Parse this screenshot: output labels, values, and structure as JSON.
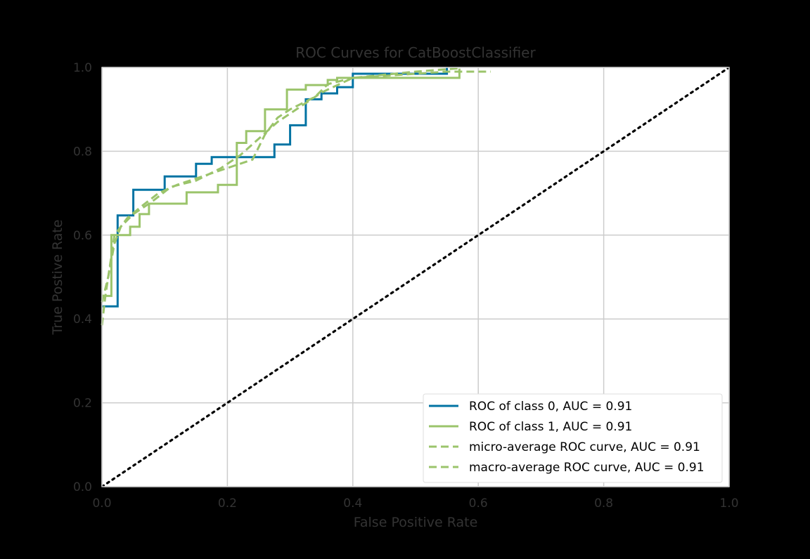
{
  "chart_data": {
    "type": "line",
    "title": "ROC Curves for CatBoostClassifier",
    "xlabel": "False Positive Rate",
    "ylabel": "True Postive Rate",
    "xlim": [
      0,
      1
    ],
    "ylim": [
      0,
      1
    ],
    "xticks": [
      "0.0",
      "0.2",
      "0.4",
      "0.6",
      "0.8",
      "1.0"
    ],
    "yticks": [
      "0.0",
      "0.2",
      "0.4",
      "0.6",
      "0.8",
      "1.0"
    ],
    "grid": true,
    "legend_position": "lower right",
    "colors": {
      "background": "#000000",
      "plot_background": "#ffffff",
      "grid": "#cccccc",
      "text": "#333333",
      "class0": "#0173a3",
      "class1": "#9bc46b",
      "diagonal": "#000000"
    },
    "series": [
      {
        "name": "ROC of class 0, AUC = 0.91",
        "style": "solid",
        "color": "#0173a3",
        "x": [
          0,
          0.025,
          0.025,
          0.025,
          0.025,
          0.025,
          0.05,
          0.05,
          0.1,
          0.1,
          0.15,
          0.15,
          0.175,
          0.175,
          0.275,
          0.275,
          0.3,
          0.3,
          0.325,
          0.325,
          0.35,
          0.35,
          0.375,
          0.375,
          0.4,
          0.4,
          0.55,
          0.55
        ],
        "y": [
          0.43,
          0.43,
          0.6,
          0.6,
          0.647,
          0.647,
          0.647,
          0.708,
          0.708,
          0.74,
          0.74,
          0.77,
          0.77,
          0.786,
          0.786,
          0.816,
          0.816,
          0.862,
          0.862,
          0.924,
          0.924,
          0.938,
          0.938,
          0.953,
          0.953,
          0.985,
          0.985,
          1.0
        ]
      },
      {
        "name": "ROC of class 1, AUC = 0.91",
        "style": "solid",
        "color": "#9bc46b",
        "x": [
          0,
          0.015,
          0.015,
          0.045,
          0.045,
          0.06,
          0.06,
          0.075,
          0.075,
          0.135,
          0.135,
          0.185,
          0.185,
          0.215,
          0.215,
          0.23,
          0.23,
          0.26,
          0.26,
          0.295,
          0.295,
          0.325,
          0.325,
          0.36,
          0.36,
          0.375,
          0.375,
          0.57,
          0.57
        ],
        "y": [
          0.455,
          0.455,
          0.6,
          0.6,
          0.62,
          0.62,
          0.65,
          0.65,
          0.675,
          0.675,
          0.702,
          0.702,
          0.72,
          0.72,
          0.82,
          0.82,
          0.848,
          0.848,
          0.9,
          0.9,
          0.947,
          0.947,
          0.958,
          0.958,
          0.97,
          0.97,
          0.975,
          0.975,
          0.997
        ]
      },
      {
        "name": "micro-average ROC curve, AUC = 0.91",
        "style": "dashed",
        "color": "#9bc46b",
        "x": [
          0,
          0.005,
          0.01,
          0.015,
          0.02,
          0.04,
          0.06,
          0.09,
          0.12,
          0.16,
          0.2,
          0.24,
          0.26,
          0.28,
          0.3,
          0.34,
          0.36,
          0.4,
          0.5,
          0.55,
          0.62
        ],
        "y": [
          0.385,
          0.45,
          0.5,
          0.55,
          0.6,
          0.64,
          0.665,
          0.7,
          0.72,
          0.74,
          0.76,
          0.78,
          0.84,
          0.88,
          0.9,
          0.93,
          0.96,
          0.975,
          0.985,
          0.99,
          0.99
        ]
      },
      {
        "name": "macro-average ROC curve, AUC = 0.91",
        "style": "dashed",
        "color": "#9bc46b",
        "x": [
          0,
          0.01,
          0.02,
          0.03,
          0.05,
          0.08,
          0.11,
          0.15,
          0.19,
          0.22,
          0.25,
          0.28,
          0.31,
          0.35,
          0.4,
          0.5,
          0.57
        ],
        "y": [
          0.44,
          0.5,
          0.58,
          0.62,
          0.65,
          0.68,
          0.715,
          0.73,
          0.76,
          0.79,
          0.83,
          0.87,
          0.9,
          0.94,
          0.975,
          0.99,
          0.998
        ]
      },
      {
        "name": "",
        "style": "dotted",
        "color": "#000000",
        "x": [
          0,
          1
        ],
        "y": [
          0,
          1
        ]
      }
    ]
  }
}
